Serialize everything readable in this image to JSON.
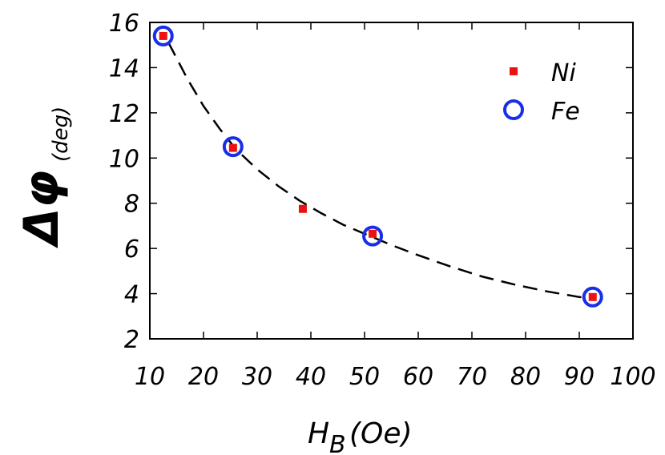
{
  "chart_data": {
    "type": "scatter",
    "xlim": [
      10,
      100
    ],
    "ylim": [
      2,
      16
    ],
    "x_ticks": [
      10,
      20,
      30,
      40,
      50,
      60,
      70,
      80,
      90,
      100
    ],
    "y_ticks": [
      2,
      4,
      6,
      8,
      10,
      12,
      14,
      16
    ],
    "xlabel": {
      "main": "H",
      "sub": "B",
      "unit": "(Oe)"
    },
    "ylabel": {
      "main": "Δφ",
      "unit": "(deg)"
    },
    "legend_position": "top-right",
    "grid": false,
    "series": [
      {
        "name": "Ni",
        "marker": "filled-square",
        "color": "#ee1111",
        "x": [
          12.5,
          25.5,
          38.5,
          51.5,
          92.5
        ],
        "y": [
          15.4,
          10.45,
          7.75,
          6.65,
          3.85
        ]
      },
      {
        "name": "Fe",
        "marker": "open-circle",
        "color": "#1a2ee6",
        "x": [
          12.5,
          25.5,
          51.5,
          92.5
        ],
        "y": [
          15.4,
          10.5,
          6.55,
          3.85
        ]
      }
    ],
    "fit": {
      "style": "dashed",
      "color": "#000000",
      "x": [
        13.5,
        17,
        20,
        23,
        26,
        30,
        34,
        38,
        42,
        46,
        50,
        55,
        60,
        66,
        72,
        78,
        84,
        90,
        92.5
      ],
      "y": [
        15.1,
        13.5,
        12.3,
        11.3,
        10.4,
        9.5,
        8.75,
        8.1,
        7.55,
        7.05,
        6.65,
        6.15,
        5.7,
        5.2,
        4.75,
        4.4,
        4.1,
        3.85,
        3.8
      ]
    }
  }
}
